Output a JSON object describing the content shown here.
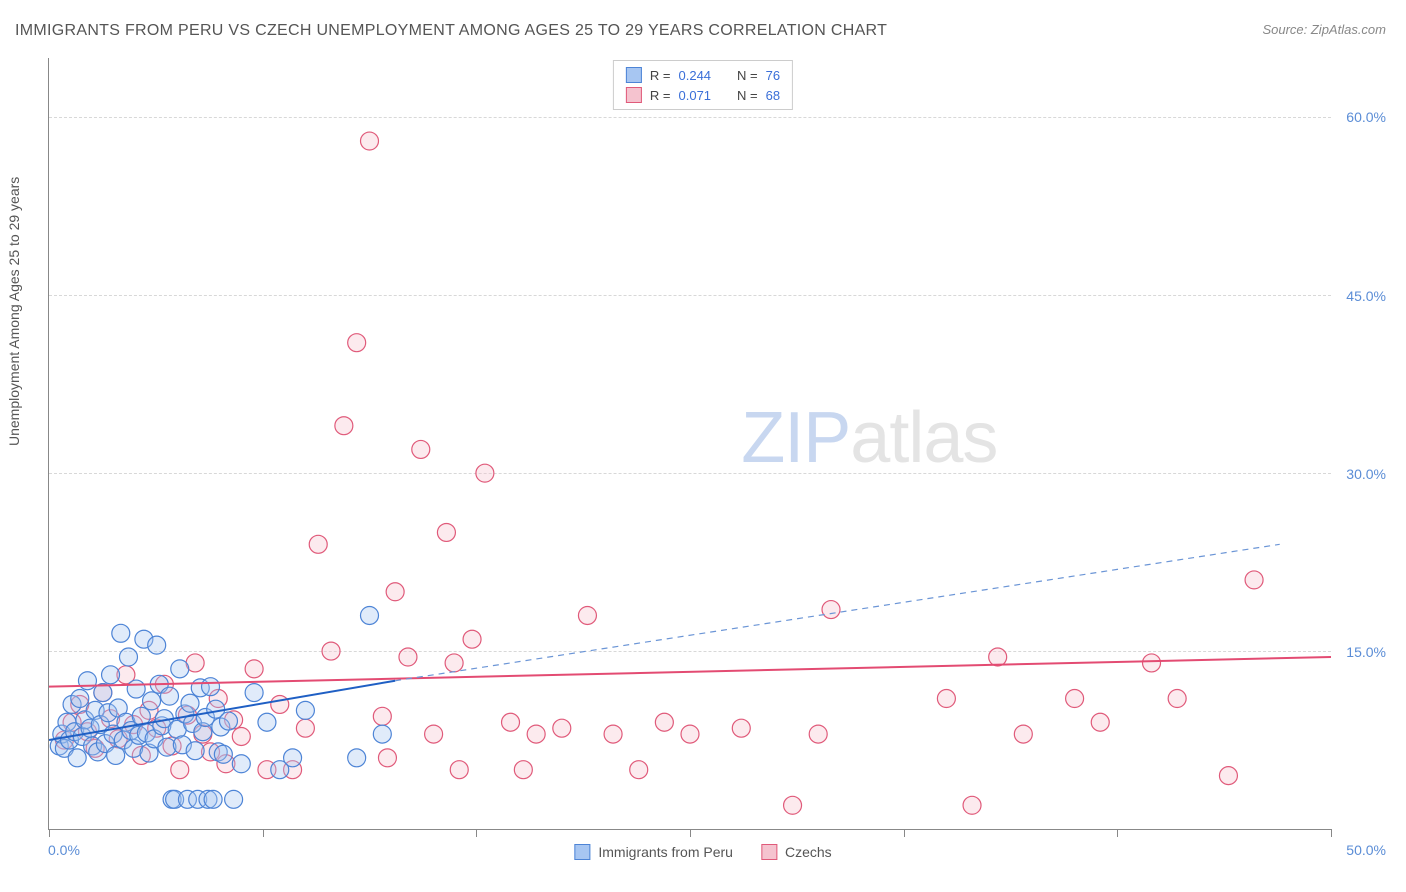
{
  "title": "IMMIGRANTS FROM PERU VS CZECH UNEMPLOYMENT AMONG AGES 25 TO 29 YEARS CORRELATION CHART",
  "source_label": "Source: ",
  "source_value": "ZipAtlas.com",
  "y_axis_label": "Unemployment Among Ages 25 to 29 years",
  "watermark_a": "ZIP",
  "watermark_b": "atlas",
  "chart": {
    "type": "scatter",
    "xlim": [
      0,
      50
    ],
    "ylim": [
      0,
      65
    ],
    "x_ticks": [
      0,
      8.33,
      16.67,
      25,
      33.33,
      41.67,
      50
    ],
    "x_tick_labels_shown": {
      "0": "0.0%",
      "50": "50.0%"
    },
    "y_ticks": [
      15,
      30,
      45,
      60
    ],
    "y_tick_labels": {
      "15": "15.0%",
      "30": "30.0%",
      "45": "45.0%",
      "60": "60.0%"
    },
    "grid_color": "#d8d8d8",
    "background_color": "#ffffff",
    "axis_color": "#888888",
    "marker_radius": 9,
    "series": [
      {
        "id": "peru",
        "label": "Immigrants from Peru",
        "fill": "#a7c6f2",
        "stroke": "#4d84d6",
        "r_label": "R = ",
        "r_value": "0.244",
        "n_label": "N = ",
        "n_value": "76",
        "trend": {
          "x1": 0,
          "y1": 7.5,
          "x2": 13.5,
          "y2": 12.5,
          "solid_color": "#1f5fc4",
          "dash_x2": 48,
          "dash_y2": 24,
          "dash_color": "#6b95d6",
          "width": 2
        },
        "points": [
          [
            0.4,
            7.0
          ],
          [
            0.5,
            8.0
          ],
          [
            0.6,
            6.8
          ],
          [
            0.7,
            9.0
          ],
          [
            0.8,
            7.5
          ],
          [
            0.9,
            10.5
          ],
          [
            1.0,
            8.2
          ],
          [
            1.1,
            6.0
          ],
          [
            1.2,
            11.0
          ],
          [
            1.3,
            7.8
          ],
          [
            1.4,
            9.2
          ],
          [
            1.5,
            12.5
          ],
          [
            1.6,
            8.5
          ],
          [
            1.7,
            7.0
          ],
          [
            1.8,
            10.0
          ],
          [
            1.9,
            6.5
          ],
          [
            2.0,
            8.8
          ],
          [
            2.1,
            11.5
          ],
          [
            2.2,
            7.2
          ],
          [
            2.3,
            9.8
          ],
          [
            2.4,
            13.0
          ],
          [
            2.5,
            8.0
          ],
          [
            2.6,
            6.2
          ],
          [
            2.7,
            10.2
          ],
          [
            2.8,
            16.5
          ],
          [
            2.9,
            7.5
          ],
          [
            3.0,
            9.0
          ],
          [
            3.1,
            14.5
          ],
          [
            3.2,
            8.3
          ],
          [
            3.3,
            6.8
          ],
          [
            3.4,
            11.8
          ],
          [
            3.5,
            7.9
          ],
          [
            3.6,
            9.5
          ],
          [
            3.7,
            16.0
          ],
          [
            3.8,
            8.1
          ],
          [
            3.9,
            6.4
          ],
          [
            4.0,
            10.8
          ],
          [
            4.1,
            7.6
          ],
          [
            4.2,
            15.5
          ],
          [
            4.3,
            12.2
          ],
          [
            4.4,
            8.7
          ],
          [
            4.5,
            9.3
          ],
          [
            4.6,
            6.9
          ],
          [
            4.7,
            11.2
          ],
          [
            4.8,
            2.5
          ],
          [
            4.9,
            2.5
          ],
          [
            5.0,
            8.4
          ],
          [
            5.1,
            13.5
          ],
          [
            5.2,
            7.1
          ],
          [
            5.3,
            9.7
          ],
          [
            5.4,
            2.5
          ],
          [
            5.5,
            10.6
          ],
          [
            5.6,
            8.9
          ],
          [
            5.7,
            6.6
          ],
          [
            5.8,
            2.5
          ],
          [
            5.9,
            11.9
          ],
          [
            6.0,
            8.2
          ],
          [
            6.1,
            9.4
          ],
          [
            6.2,
            2.5
          ],
          [
            6.3,
            12.0
          ],
          [
            6.4,
            2.5
          ],
          [
            6.5,
            10.1
          ],
          [
            6.6,
            6.5
          ],
          [
            6.7,
            8.6
          ],
          [
            6.8,
            6.3
          ],
          [
            7.0,
            9.1
          ],
          [
            7.2,
            2.5
          ],
          [
            7.5,
            5.5
          ],
          [
            8.0,
            11.5
          ],
          [
            8.5,
            9.0
          ],
          [
            9.0,
            5.0
          ],
          [
            9.5,
            6.0
          ],
          [
            10.0,
            10.0
          ],
          [
            12.0,
            6.0
          ],
          [
            12.5,
            18.0
          ],
          [
            13.0,
            8.0
          ]
        ]
      },
      {
        "id": "czech",
        "label": "Czechs",
        "fill": "#f5c3cf",
        "stroke": "#e05a7a",
        "r_label": "R = ",
        "r_value": "0.071",
        "n_label": "N = ",
        "n_value": "68",
        "trend": {
          "x1": 0,
          "y1": 12.0,
          "x2": 50,
          "y2": 14.5,
          "solid_color": "#e34b72",
          "width": 2
        },
        "points": [
          [
            0.6,
            7.5
          ],
          [
            0.9,
            9.0
          ],
          [
            1.2,
            10.5
          ],
          [
            1.5,
            8.2
          ],
          [
            1.8,
            6.8
          ],
          [
            2.1,
            11.5
          ],
          [
            2.4,
            9.3
          ],
          [
            2.7,
            7.6
          ],
          [
            3.0,
            13.0
          ],
          [
            3.3,
            8.8
          ],
          [
            3.6,
            6.2
          ],
          [
            3.9,
            10.0
          ],
          [
            4.2,
            8.5
          ],
          [
            4.5,
            12.2
          ],
          [
            4.8,
            7.0
          ],
          [
            5.1,
            5.0
          ],
          [
            5.4,
            9.6
          ],
          [
            5.7,
            14.0
          ],
          [
            6.0,
            8.0
          ],
          [
            6.3,
            6.5
          ],
          [
            6.6,
            11.0
          ],
          [
            6.9,
            5.5
          ],
          [
            7.2,
            9.2
          ],
          [
            7.5,
            7.8
          ],
          [
            8.0,
            13.5
          ],
          [
            8.5,
            5.0
          ],
          [
            9.0,
            10.5
          ],
          [
            9.5,
            5.0
          ],
          [
            10.0,
            8.5
          ],
          [
            10.5,
            24.0
          ],
          [
            11.0,
            15.0
          ],
          [
            11.5,
            34.0
          ],
          [
            12.0,
            41.0
          ],
          [
            12.5,
            58.0
          ],
          [
            13.0,
            9.5
          ],
          [
            13.2,
            6.0
          ],
          [
            13.5,
            20.0
          ],
          [
            14.0,
            14.5
          ],
          [
            14.5,
            32.0
          ],
          [
            15.0,
            8.0
          ],
          [
            15.5,
            25.0
          ],
          [
            15.8,
            14.0
          ],
          [
            16.0,
            5.0
          ],
          [
            16.5,
            16.0
          ],
          [
            17.0,
            30.0
          ],
          [
            18.0,
            9.0
          ],
          [
            18.5,
            5.0
          ],
          [
            19.0,
            8.0
          ],
          [
            20.0,
            8.5
          ],
          [
            21.0,
            18.0
          ],
          [
            22.0,
            8.0
          ],
          [
            23.0,
            5.0
          ],
          [
            24.0,
            9.0
          ],
          [
            25.0,
            8.0
          ],
          [
            27.0,
            8.5
          ],
          [
            29.0,
            2.0
          ],
          [
            30.0,
            8.0
          ],
          [
            30.5,
            18.5
          ],
          [
            35.0,
            11.0
          ],
          [
            37.0,
            14.5
          ],
          [
            38.0,
            8.0
          ],
          [
            40.0,
            11.0
          ],
          [
            41.0,
            9.0
          ],
          [
            44.0,
            11.0
          ],
          [
            46.0,
            4.5
          ],
          [
            47.0,
            21.0
          ],
          [
            43.0,
            14.0
          ],
          [
            36.0,
            2.0
          ]
        ]
      }
    ]
  }
}
